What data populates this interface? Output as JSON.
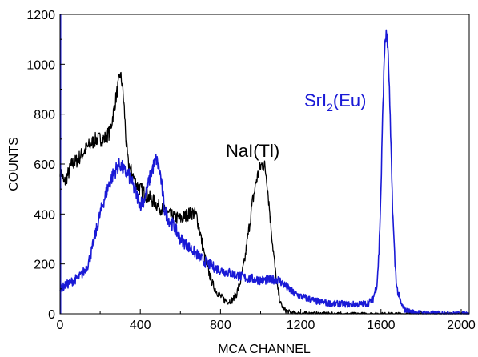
{
  "chart_data": {
    "type": "line",
    "title": "",
    "xlabel": "MCA CHANNEL",
    "ylabel": "COUNTS",
    "xlim": [
      0,
      2040
    ],
    "ylim": [
      0,
      1200
    ],
    "xticks": [
      0,
      400,
      800,
      1200,
      1600,
      2000
    ],
    "yticks": [
      0,
      200,
      400,
      600,
      800,
      1000,
      1200
    ],
    "grid": false,
    "legend": "none",
    "annotations": [
      {
        "id": "nai",
        "text": "NaI(Tl)",
        "color": "#000000"
      },
      {
        "id": "sri",
        "text_main": "SrI",
        "text_sub": "2",
        "text_tail": "(Eu)",
        "color": "#1a1ad6"
      }
    ],
    "series": [
      {
        "color": "#000000",
        "x": [
          0,
          10,
          20,
          40,
          60,
          80,
          100,
          140,
          180,
          220,
          250,
          280,
          300,
          310,
          320,
          330,
          340,
          360,
          380,
          400,
          440,
          480,
          520,
          560,
          600,
          640,
          660,
          680,
          700,
          720,
          740,
          760,
          780,
          800,
          820,
          840,
          860,
          880,
          900,
          920,
          940,
          960,
          980,
          1000,
          1010,
          1020,
          1030,
          1040,
          1060,
          1080,
          1100,
          1120,
          1150,
          1200,
          1300,
          1400,
          1600,
          2040
        ],
        "y": [
          580,
          560,
          520,
          560,
          600,
          610,
          630,
          670,
          700,
          700,
          730,
          870,
          960,
          920,
          820,
          680,
          600,
          560,
          520,
          500,
          470,
          440,
          410,
          390,
          380,
          400,
          405,
          395,
          320,
          230,
          170,
          120,
          90,
          70,
          55,
          50,
          55,
          80,
          130,
          210,
          330,
          450,
          540,
          590,
          600,
          590,
          550,
          460,
          280,
          120,
          40,
          15,
          5,
          2,
          1,
          0,
          0,
          0
        ]
      },
      {
        "color": "#1a1ad6",
        "x": [
          0,
          20,
          40,
          60,
          80,
          100,
          120,
          140,
          160,
          180,
          200,
          220,
          240,
          260,
          280,
          300,
          320,
          340,
          360,
          380,
          400,
          420,
          440,
          460,
          480,
          500,
          520,
          540,
          560,
          580,
          600,
          640,
          680,
          720,
          760,
          800,
          840,
          880,
          920,
          960,
          1000,
          1040,
          1080,
          1100,
          1120,
          1140,
          1160,
          1200,
          1240,
          1280,
          1320,
          1360,
          1400,
          1440,
          1480,
          1520,
          1540,
          1560,
          1580,
          1590,
          1600,
          1610,
          1620,
          1630,
          1640,
          1650,
          1660,
          1670,
          1680,
          1700,
          1720,
          1760,
          1800,
          1900,
          2040
        ],
        "y": [
          100,
          110,
          120,
          130,
          140,
          150,
          170,
          200,
          260,
          330,
          400,
          460,
          510,
          550,
          580,
          600,
          570,
          560,
          520,
          480,
          440,
          460,
          520,
          580,
          620,
          560,
          420,
          380,
          360,
          330,
          300,
          270,
          240,
          210,
          190,
          175,
          165,
          155,
          145,
          140,
          135,
          135,
          140,
          130,
          115,
          100,
          85,
          70,
          60,
          50,
          45,
          40,
          40,
          38,
          38,
          40,
          45,
          60,
          120,
          250,
          500,
          850,
          1100,
          1120,
          950,
          650,
          380,
          200,
          100,
          40,
          15,
          8,
          5,
          3,
          2
        ]
      }
    ]
  }
}
